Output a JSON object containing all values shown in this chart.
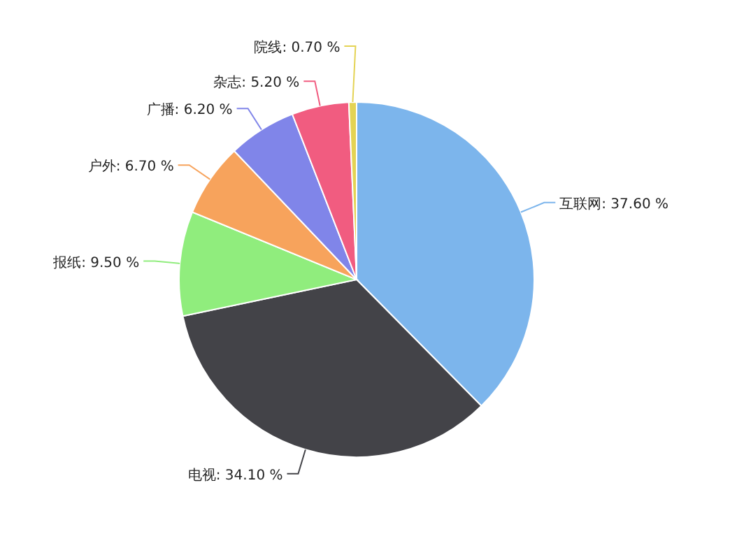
{
  "chart_data": {
    "type": "pie",
    "categories": [
      "互联网",
      "电视",
      "报纸",
      "户外",
      "广播",
      "杂志",
      "院线"
    ],
    "values": [
      37.6,
      34.1,
      9.5,
      6.7,
      6.2,
      5.2,
      0.7
    ],
    "value_labels": [
      "37.60 %",
      "34.10 %",
      "9.50 %",
      "6.70 %",
      "6.20 %",
      "5.20 %",
      "0.70 %"
    ],
    "colors": [
      "#7cb5ec",
      "#434348",
      "#90ed7d",
      "#f7a35c",
      "#8085e9",
      "#f15c80",
      "#e4d354"
    ]
  }
}
